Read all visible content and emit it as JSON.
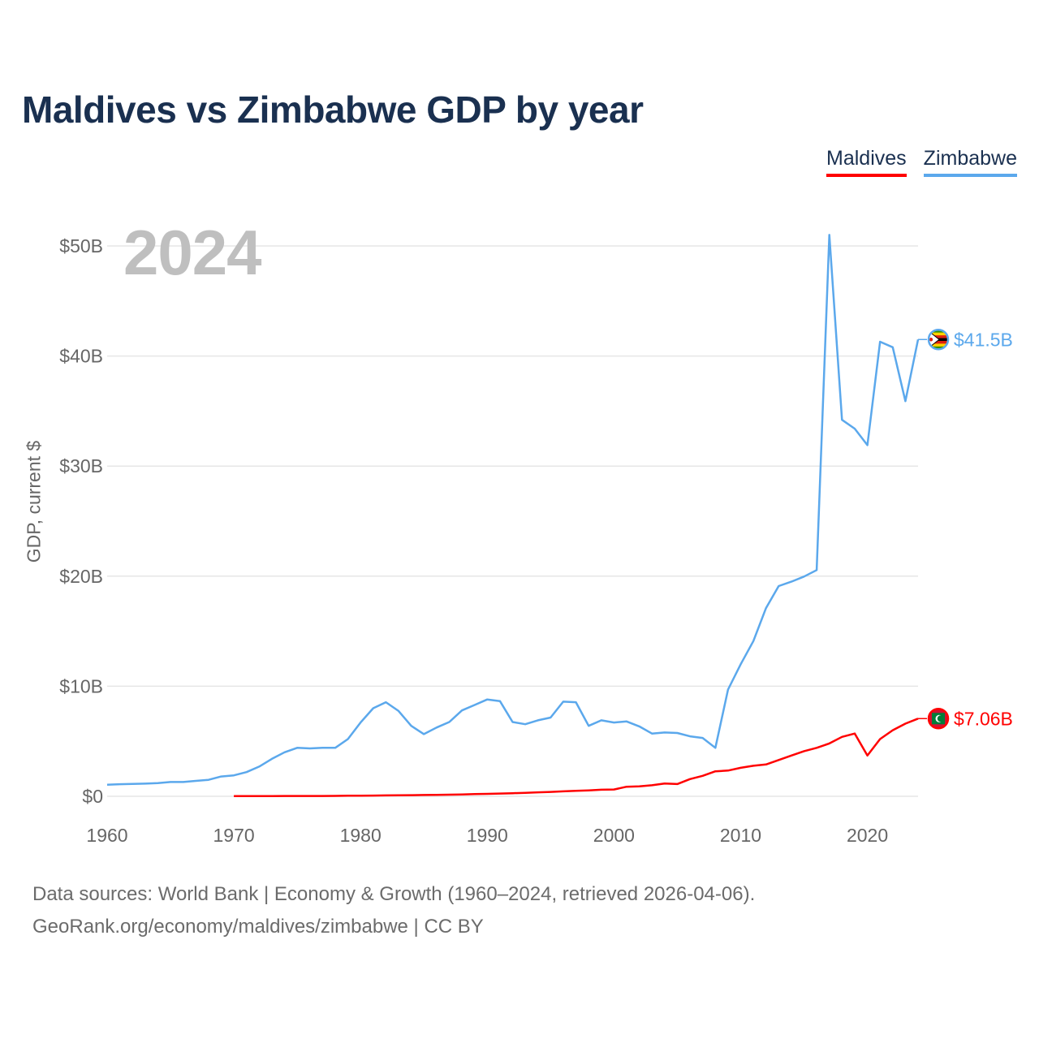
{
  "page": {
    "title": "Maldives vs Zimbabwe GDP by year",
    "year_label": "2024",
    "y_axis_title": "GDP, current $",
    "source_line1": "Data sources: World Bank | Economy & Growth (1960–2024, retrieved 2026-04-06).",
    "source_line2": "GeoRank.org/economy/maldives/zimbabwe | CC BY"
  },
  "legend": {
    "maldives": "Maldives",
    "zimbabwe": "Zimbabwe"
  },
  "colors": {
    "maldives": "#ff0000",
    "zimbabwe": "#5ba8ec",
    "grid": "#e6e6e6",
    "tick_text": "#666666"
  },
  "chart_data": {
    "type": "line",
    "title": "Maldives vs Zimbabwe GDP by year",
    "xlabel": "",
    "ylabel": "GDP, current $",
    "xlim": [
      1960,
      2024
    ],
    "ylim": [
      0,
      50
    ],
    "x_ticks": [
      1960,
      1970,
      1980,
      1990,
      2000,
      2010,
      2020
    ],
    "y_ticks": [
      {
        "value": 0,
        "label": "$0"
      },
      {
        "value": 10,
        "label": "$10B"
      },
      {
        "value": 20,
        "label": "$20B"
      },
      {
        "value": 30,
        "label": "$30B"
      },
      {
        "value": 40,
        "label": "$40B"
      },
      {
        "value": 50,
        "label": "$50B"
      }
    ],
    "series": [
      {
        "name": "Zimbabwe",
        "color": "#5ba8ec",
        "flag_icon": "zimbabwe-flag-icon",
        "end_label": "$41.5B",
        "x": [
          1960,
          1961,
          1962,
          1963,
          1964,
          1965,
          1966,
          1967,
          1968,
          1969,
          1970,
          1971,
          1972,
          1973,
          1974,
          1975,
          1976,
          1977,
          1978,
          1979,
          1980,
          1981,
          1982,
          1983,
          1984,
          1985,
          1986,
          1987,
          1988,
          1989,
          1990,
          1991,
          1992,
          1993,
          1994,
          1995,
          1996,
          1997,
          1998,
          1999,
          2000,
          2001,
          2002,
          2003,
          2004,
          2005,
          2006,
          2007,
          2008,
          2009,
          2010,
          2011,
          2012,
          2013,
          2014,
          2015,
          2016,
          2017,
          2018,
          2019,
          2020,
          2021,
          2022,
          2023,
          2024
        ],
        "values": [
          1.05,
          1.1,
          1.12,
          1.15,
          1.2,
          1.3,
          1.3,
          1.4,
          1.5,
          1.8,
          1.9,
          2.2,
          2.7,
          3.4,
          4.0,
          4.4,
          4.35,
          4.4,
          4.4,
          5.2,
          6.7,
          8.0,
          8.55,
          7.75,
          6.4,
          5.65,
          6.25,
          6.75,
          7.8,
          8.3,
          8.8,
          8.65,
          6.75,
          6.55,
          6.9,
          7.15,
          8.6,
          8.55,
          6.4,
          6.9,
          6.7,
          6.8,
          6.35,
          5.7,
          5.8,
          5.75,
          5.45,
          5.3,
          4.4,
          9.7,
          12.0,
          14.1,
          17.1,
          19.1,
          19.5,
          19.96,
          20.55,
          51.0,
          34.2,
          33.4,
          31.9,
          41.3,
          40.8,
          35.9,
          41.5
        ]
      },
      {
        "name": "Maldives",
        "color": "#ff0000",
        "flag_icon": "maldives-flag-icon",
        "end_label": "$7.06B",
        "x": [
          1970,
          1971,
          1972,
          1973,
          1974,
          1975,
          1976,
          1977,
          1978,
          1979,
          1980,
          1981,
          1982,
          1983,
          1984,
          1985,
          1986,
          1987,
          1988,
          1989,
          1990,
          1991,
          1992,
          1993,
          1994,
          1995,
          1996,
          1997,
          1998,
          1999,
          2000,
          2001,
          2002,
          2003,
          2004,
          2005,
          2006,
          2007,
          2008,
          2009,
          2010,
          2011,
          2012,
          2013,
          2014,
          2015,
          2016,
          2017,
          2018,
          2019,
          2020,
          2021,
          2022,
          2023,
          2024
        ],
        "values": [
          0.02,
          0.02,
          0.02,
          0.025,
          0.03,
          0.03,
          0.03,
          0.03,
          0.04,
          0.05,
          0.06,
          0.07,
          0.08,
          0.09,
          0.1,
          0.12,
          0.13,
          0.15,
          0.17,
          0.2,
          0.22,
          0.25,
          0.28,
          0.32,
          0.36,
          0.4,
          0.45,
          0.5,
          0.54,
          0.6,
          0.62,
          0.87,
          0.9,
          1.0,
          1.16,
          1.11,
          1.56,
          1.86,
          2.27,
          2.34,
          2.59,
          2.77,
          2.89,
          3.3,
          3.7,
          4.1,
          4.4,
          4.8,
          5.4,
          5.7,
          3.7,
          5.2,
          6.0,
          6.6,
          7.06
        ]
      }
    ]
  }
}
